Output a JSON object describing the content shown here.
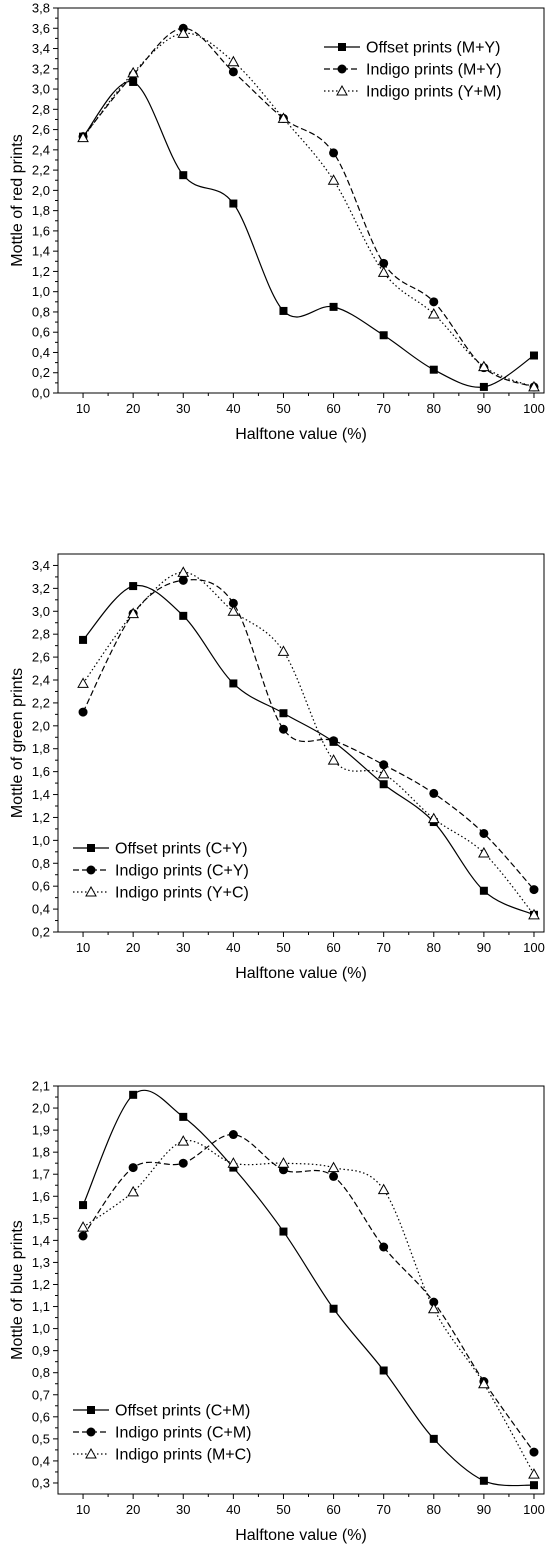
{
  "chart_data": [
    {
      "type": "line",
      "title": "",
      "xlabel": "Halftone value (%)",
      "ylabel": "Mottle of red prints",
      "x": [
        10,
        20,
        30,
        40,
        50,
        60,
        70,
        80,
        90,
        100
      ],
      "xlim": [
        5,
        102
      ],
      "ylim": [
        0,
        3.8
      ],
      "ytick_step": 0.2,
      "decimal_comma": true,
      "grid": false,
      "legend_position": "top-right",
      "series": [
        {
          "name": "Offset prints (M+Y)",
          "values": [
            2.53,
            3.07,
            2.15,
            1.87,
            0.81,
            0.85,
            0.57,
            0.23,
            0.06,
            0.37
          ],
          "line": "solid",
          "marker": "square"
        },
        {
          "name": "Indigo prints (M+Y)",
          "values": [
            2.53,
            3.14,
            3.6,
            3.17,
            2.71,
            2.37,
            1.28,
            0.9,
            0.25,
            0.06
          ],
          "line": "dashed",
          "marker": "circle"
        },
        {
          "name": "Indigo prints (Y+M)",
          "values": [
            2.52,
            3.16,
            3.55,
            3.27,
            2.71,
            2.1,
            1.19,
            0.78,
            0.26,
            0.06
          ],
          "line": "dotted",
          "marker": "triangle-open"
        }
      ]
    },
    {
      "type": "line",
      "title": "",
      "xlabel": "Halftone value (%)",
      "ylabel": "Mottle of green prints",
      "x": [
        10,
        20,
        30,
        40,
        50,
        60,
        70,
        80,
        90,
        100
      ],
      "xlim": [
        5,
        102
      ],
      "ylim": [
        0.2,
        3.5
      ],
      "ytick_step": 0.2,
      "decimal_comma": true,
      "grid": false,
      "legend_position": "bottom-left",
      "series": [
        {
          "name": "Offset prints (C+Y)",
          "values": [
            2.75,
            3.22,
            2.96,
            2.37,
            2.11,
            1.86,
            1.49,
            1.16,
            0.56,
            0.35
          ],
          "line": "solid",
          "marker": "square"
        },
        {
          "name": "Indigo prints (C+Y)",
          "values": [
            2.12,
            2.98,
            3.27,
            3.07,
            1.97,
            1.87,
            1.66,
            1.41,
            1.06,
            0.57
          ],
          "line": "dashed",
          "marker": "circle"
        },
        {
          "name": "Indigo prints (Y+C)",
          "values": [
            2.37,
            2.98,
            3.34,
            3.0,
            2.65,
            1.7,
            1.58,
            1.19,
            0.89,
            0.35
          ],
          "line": "dotted",
          "marker": "triangle-open"
        }
      ]
    },
    {
      "type": "line",
      "title": "",
      "xlabel": "Halftone value (%)",
      "ylabel": "Mottle of blue prints",
      "x": [
        10,
        20,
        30,
        40,
        50,
        60,
        70,
        80,
        90,
        100
      ],
      "xlim": [
        5,
        102
      ],
      "ylim": [
        0.25,
        2.1
      ],
      "ytick_step": 0.1,
      "decimal_comma": true,
      "grid": false,
      "legend_position": "bottom-left",
      "series": [
        {
          "name": "Offset prints (C+M)",
          "values": [
            1.56,
            2.06,
            1.96,
            1.73,
            1.44,
            1.09,
            0.81,
            0.5,
            0.31,
            0.29
          ],
          "line": "solid",
          "marker": "square"
        },
        {
          "name": "Indigo prints (C+M)",
          "values": [
            1.42,
            1.73,
            1.75,
            1.88,
            1.72,
            1.69,
            1.37,
            1.12,
            0.76,
            0.44
          ],
          "line": "dashed",
          "marker": "circle"
        },
        {
          "name": "Indigo prints (M+C)",
          "values": [
            1.46,
            1.62,
            1.85,
            1.75,
            1.75,
            1.73,
            1.63,
            1.09,
            0.75,
            0.34
          ],
          "line": "dotted",
          "marker": "triangle-open"
        }
      ]
    }
  ]
}
